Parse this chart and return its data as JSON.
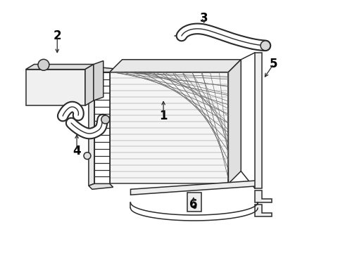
{
  "background_color": "#ffffff",
  "line_color": "#2a2a2a",
  "label_color": "#000000",
  "label_fontsize": 12,
  "label_fontweight": "bold",
  "fig_w": 4.9,
  "fig_h": 3.6,
  "dpi": 100
}
